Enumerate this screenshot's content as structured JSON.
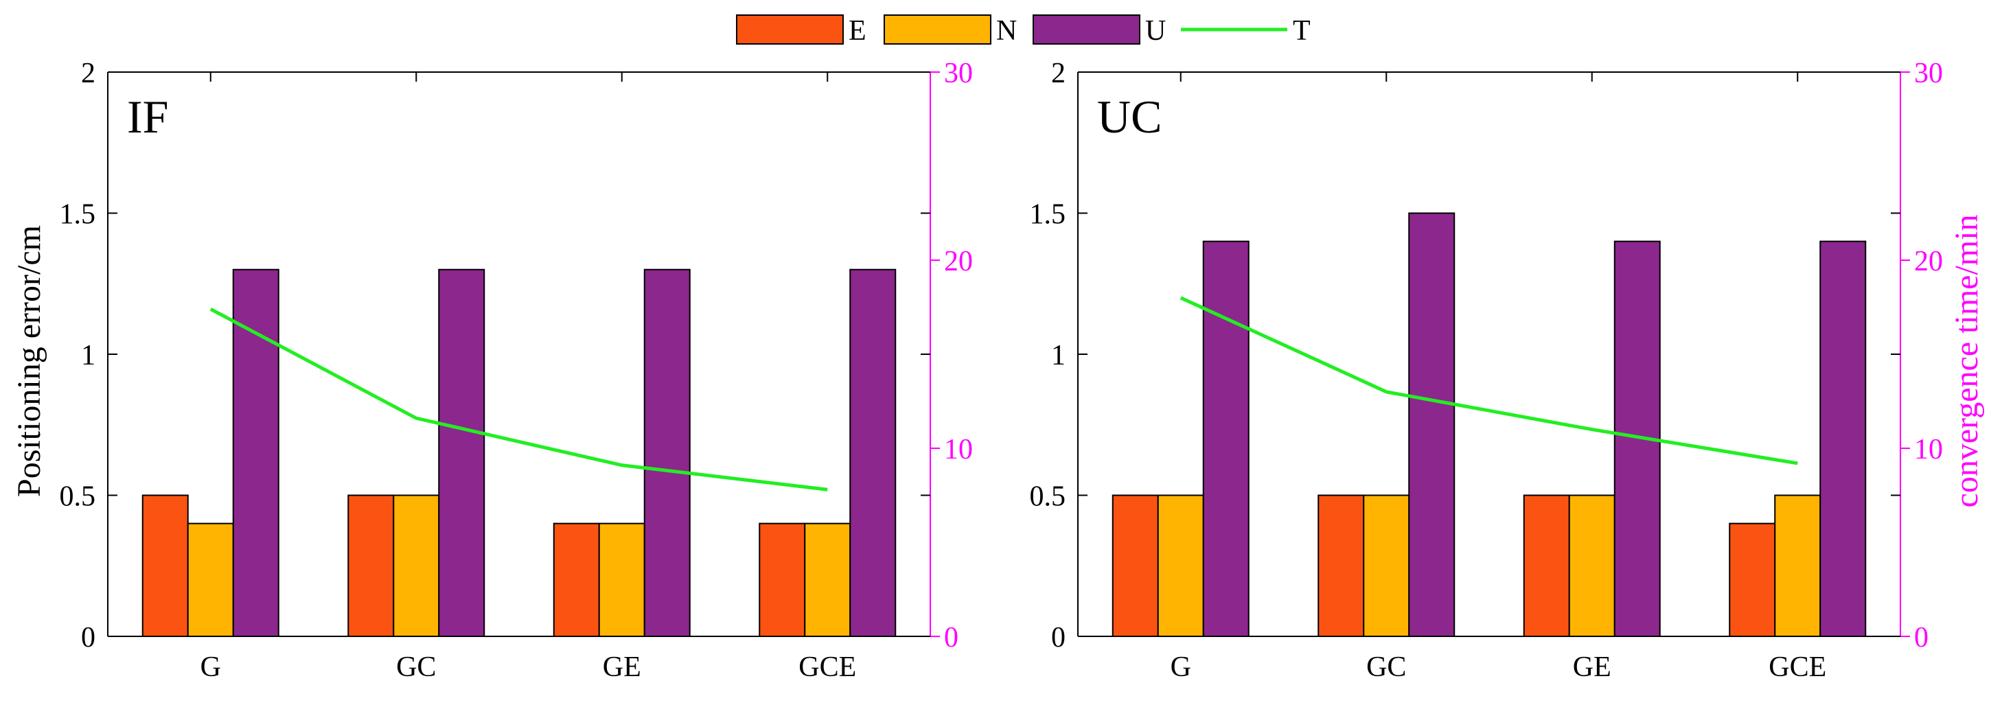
{
  "legend": [
    {
      "key": "E",
      "label": "E",
      "color": "#FB5412",
      "kind": "bar"
    },
    {
      "key": "N",
      "label": "N",
      "color": "#FEB400",
      "kind": "bar"
    },
    {
      "key": "U",
      "label": "U",
      "color": "#8C278D",
      "kind": "bar"
    },
    {
      "key": "T",
      "label": "T",
      "color": "#22EE22",
      "kind": "line"
    }
  ],
  "chart_data": [
    {
      "type": "bar",
      "title": "IF",
      "categories": [
        "G",
        "GC",
        "GE",
        "GCE"
      ],
      "series": [
        {
          "name": "E",
          "axis": "left",
          "values": [
            0.5,
            0.5,
            0.4,
            0.4
          ]
        },
        {
          "name": "N",
          "axis": "left",
          "values": [
            0.4,
            0.5,
            0.4,
            0.4
          ]
        },
        {
          "name": "U",
          "axis": "left",
          "values": [
            1.3,
            1.3,
            1.3,
            1.3
          ]
        },
        {
          "name": "T",
          "axis": "right",
          "type": "line",
          "values": [
            17.4,
            11.6,
            9.1,
            7.8
          ]
        }
      ],
      "ylabel": "Positioning error/cm",
      "y2label": "",
      "ylim": [
        0,
        2
      ],
      "y2lim": [
        0,
        30
      ],
      "yticks": [
        "0",
        "0.5",
        "1",
        "1.5",
        "2"
      ],
      "y2ticks": [
        "0",
        "10",
        "20",
        "30"
      ]
    },
    {
      "type": "bar",
      "title": "UC",
      "categories": [
        "G",
        "GC",
        "GE",
        "GCE"
      ],
      "series": [
        {
          "name": "E",
          "axis": "left",
          "values": [
            0.5,
            0.5,
            0.5,
            0.4
          ]
        },
        {
          "name": "N",
          "axis": "left",
          "values": [
            0.5,
            0.5,
            0.5,
            0.5
          ]
        },
        {
          "name": "U",
          "axis": "left",
          "values": [
            1.4,
            1.5,
            1.4,
            1.4
          ]
        },
        {
          "name": "T",
          "axis": "right",
          "type": "line",
          "values": [
            18.0,
            13.0,
            11.0,
            9.2
          ]
        }
      ],
      "ylabel": "",
      "y2label": "convergence time/min",
      "ylim": [
        0,
        2
      ],
      "y2lim": [
        0,
        30
      ],
      "yticks": [
        "0",
        "0.5",
        "1",
        "1.5",
        "2"
      ],
      "y2ticks": [
        "0",
        "10",
        "20",
        "30"
      ]
    }
  ],
  "colors": {
    "axis": "#000000",
    "right_axis": "#FF00FF",
    "bar_outline": "#000000"
  }
}
